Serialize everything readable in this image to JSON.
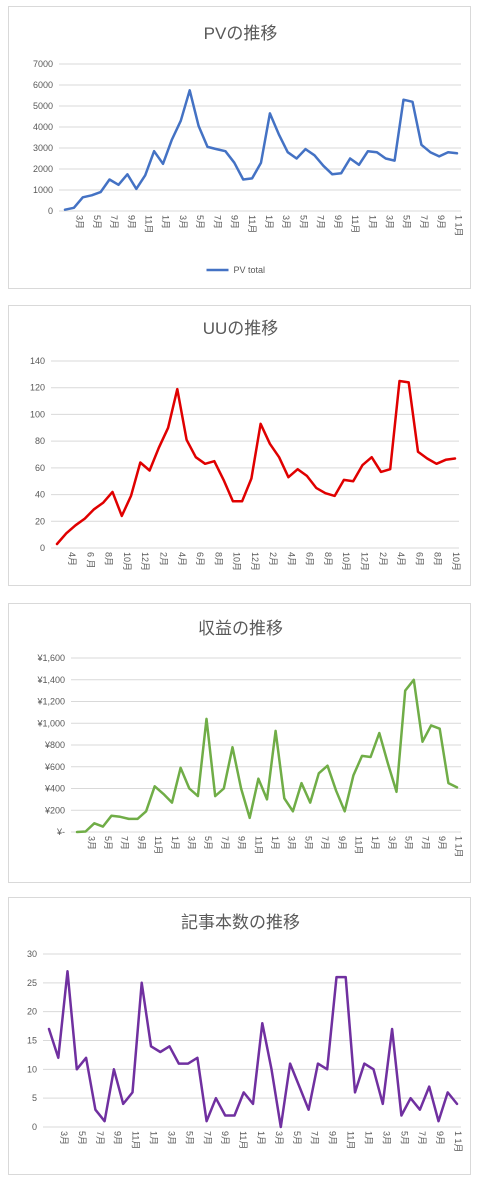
{
  "chart_data": [
    {
      "type": "line",
      "title": "PVの推移",
      "ylim": [
        0,
        7000
      ],
      "yticks": [
        "7000",
        "6000",
        "5000",
        "4000",
        "3000",
        "2000",
        "1000",
        "0"
      ],
      "x_tick_labels": [
        "3月",
        "5月",
        "7月",
        "9月",
        "11月",
        "1月",
        "3月",
        "5月",
        "7月",
        "9月",
        "11月",
        "1月",
        "3月",
        "5月",
        "7月",
        "9月",
        "11月",
        "1月",
        "3月",
        "5月",
        "7月",
        "9月",
        "1 1月"
      ],
      "legend": "bottom",
      "grid": true,
      "series": [
        {
          "name": "PV total",
          "color": "#4472c4",
          "values": [
            60,
            150,
            650,
            750,
            900,
            1500,
            1250,
            1750,
            1050,
            1700,
            2850,
            2250,
            3400,
            4300,
            5750,
            4050,
            3050,
            2950,
            2850,
            2300,
            1500,
            1550,
            2300,
            4650,
            3650,
            2800,
            2500,
            2950,
            2650,
            2150,
            1750,
            1800,
            2500,
            2200,
            2850,
            2800,
            2500,
            2400,
            5300,
            5200,
            3150,
            2800,
            2600,
            2800,
            2750
          ]
        }
      ]
    },
    {
      "type": "line",
      "title": "UUの推移",
      "ylim": [
        0,
        140
      ],
      "yticks": [
        "140",
        "120",
        "100",
        "80",
        "60",
        "40",
        "20",
        "0"
      ],
      "x_tick_labels": [
        "4月",
        "6 月",
        "8月",
        "10月",
        "12月",
        "2月",
        "4月",
        "6月",
        "8月",
        "10月",
        "12月",
        "2月",
        "4月",
        "6月",
        "8月",
        "10月",
        "12月",
        "2月",
        "4月",
        "6月",
        "8月",
        "10月"
      ],
      "grid": true,
      "series": [
        {
          "color": "#e00000",
          "values": [
            3,
            11,
            17,
            22,
            29,
            34,
            42,
            24,
            39,
            64,
            58,
            75,
            90,
            119,
            81,
            68,
            63,
            65,
            51,
            35,
            35,
            52,
            93,
            78,
            68,
            53,
            59,
            54,
            45,
            41,
            39,
            51,
            50,
            62,
            68,
            57,
            59,
            125,
            124,
            72,
            67,
            63,
            66,
            67
          ]
        }
      ]
    },
    {
      "type": "line",
      "title": "収益の推移",
      "ylim": [
        0,
        1600
      ],
      "yticks": [
        "¥1,600",
        "¥1,400",
        "¥1,200",
        "¥1,000",
        "¥800",
        "¥600",
        "¥400",
        "¥200",
        "¥-"
      ],
      "x_tick_labels": [
        "3月",
        "5月",
        "7月",
        "9月",
        "11月",
        "1月",
        "3月",
        "5月",
        "7月",
        "9月",
        "11月",
        "1月",
        "3月",
        "5月",
        "7月",
        "9月",
        "11月",
        "1月",
        "3月",
        "5月",
        "7月",
        "9月",
        "1 1月"
      ],
      "grid": true,
      "series": [
        {
          "color": "#70ad47",
          "values": [
            0,
            5,
            80,
            50,
            150,
            140,
            120,
            120,
            190,
            420,
            350,
            270,
            590,
            400,
            330,
            1040,
            330,
            400,
            780,
            400,
            130,
            490,
            300,
            930,
            310,
            190,
            450,
            270,
            540,
            610,
            380,
            190,
            520,
            700,
            690,
            910,
            630,
            370,
            1300,
            1400,
            830,
            980,
            950,
            450,
            410
          ]
        }
      ]
    },
    {
      "type": "line",
      "title": "記事本数の推移",
      "ylim": [
        0,
        30
      ],
      "yticks": [
        "30",
        "25",
        "20",
        "15",
        "10",
        "5",
        "0"
      ],
      "x_tick_labels": [
        "3月",
        "5月",
        "7月",
        "9月",
        "11月",
        "1月",
        "3月",
        "5月",
        "7月",
        "9月",
        "11月",
        "1月",
        "3月",
        "5月",
        "7月",
        "9月",
        "11月",
        "1月",
        "3月",
        "5月",
        "7月",
        "9月",
        "1 1月"
      ],
      "grid": true,
      "series": [
        {
          "color": "#7030a0",
          "values": [
            17,
            12,
            27,
            10,
            12,
            3,
            1,
            10,
            4,
            6,
            25,
            14,
            13,
            14,
            11,
            11,
            12,
            1,
            5,
            2,
            2,
            6,
            4,
            18,
            10,
            0,
            11,
            7,
            3,
            11,
            10,
            26,
            26,
            6,
            11,
            10,
            4,
            17,
            2,
            5,
            3,
            7,
            1,
            6,
            4
          ]
        }
      ]
    }
  ]
}
